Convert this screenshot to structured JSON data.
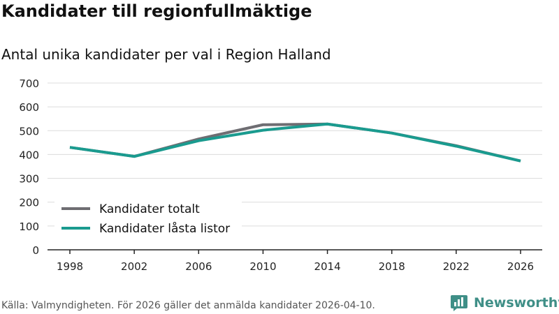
{
  "title": "Kandidater till regionfullmäktige",
  "subtitle": "Antal unika kandidater per val i Region Halland",
  "footer": "Källa: Valmyndigheten. För 2026 gäller det anmälda kandidater 2026-04-10.",
  "brand": "Newsworthy",
  "colors": {
    "totalt": "#6e6d72",
    "lasta": "#1a9b8f",
    "grid": "#dcdcdc",
    "axis": "#222222",
    "brand": "#3f8f87"
  },
  "chart_data": {
    "type": "line",
    "title": "Kandidater till regionfullmäktige",
    "subtitle": "Antal unika kandidater per val i Region Halland",
    "xlabel": "",
    "ylabel": "",
    "categories": [
      "1998",
      "2002",
      "2006",
      "2010",
      "2014",
      "2018",
      "2022",
      "2026"
    ],
    "ylim": [
      0,
      700
    ],
    "yticks": [
      0,
      100,
      200,
      300,
      400,
      500,
      600,
      700
    ],
    "grid": true,
    "legend_position": "bottom-left",
    "series": [
      {
        "name": "Kandidater totalt",
        "values": [
          430,
          392,
          465,
          525,
          528,
          490,
          437,
          373
        ]
      },
      {
        "name": "Kandidater låsta listor",
        "values": [
          430,
          392,
          458,
          502,
          528,
          490,
          435,
          373
        ]
      }
    ]
  }
}
